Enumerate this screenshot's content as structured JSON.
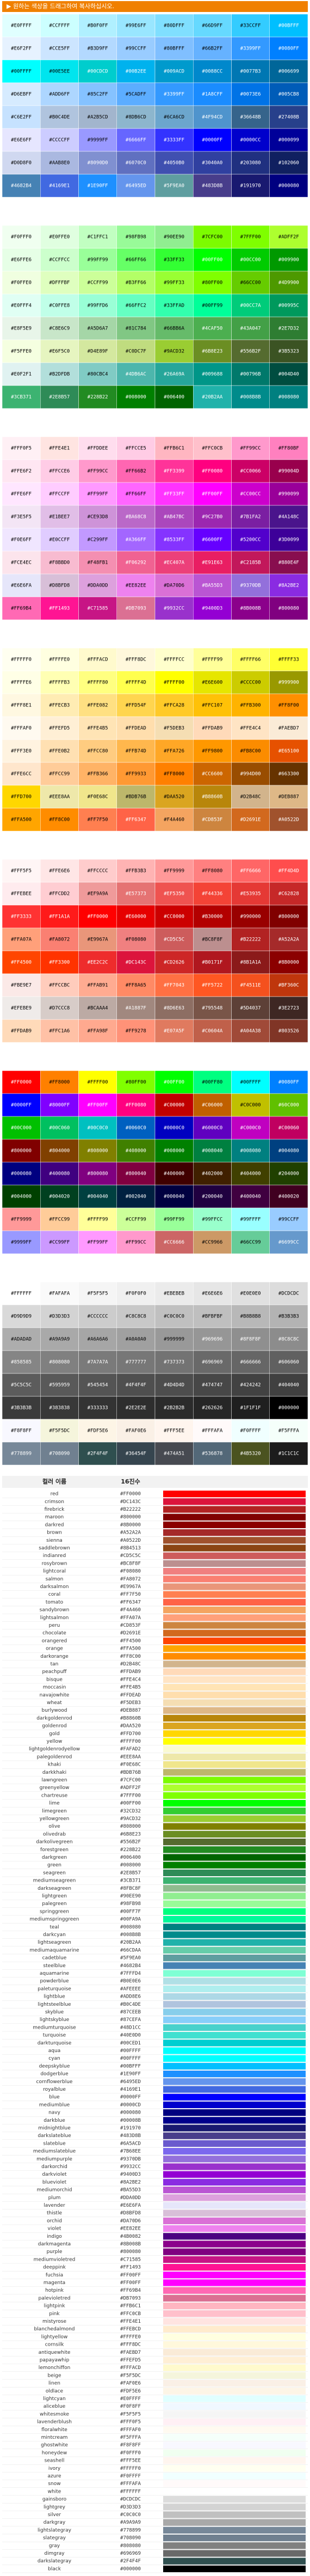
{
  "banner": {
    "text": "▶ 원하는 색상을 드래그하여 복사하십시오."
  },
  "palettes": [
    {
      "rows": [
        [
          "#E0FFFF",
          "#CCFFFF",
          "#B0F0FF",
          "#99E6FF",
          "#80DFFF",
          "#66D9FF",
          "#33CCFF",
          "#00BFFF"
        ],
        [
          "#E6F2FF",
          "#CCE5FF",
          "#B3D9FF",
          "#99CCFF",
          "#80BFFF",
          "#66B2FF",
          "#3399FF",
          "#0080FF"
        ],
        [
          "#00FFFF",
          "#00E5EE",
          "#00CDCD",
          "#00B2EE",
          "#009ACD",
          "#0088CC",
          "#0077B3",
          "#006699"
        ],
        [
          "#D6EBFF",
          "#ADD6FF",
          "#85C2FF",
          "#5CADFF",
          "#3399FF",
          "#1A8CFF",
          "#0073E6",
          "#005CB8"
        ],
        [
          "#C6E2FF",
          "#B0C4DE",
          "#A2B5CD",
          "#8DB6CD",
          "#6CA6CD",
          "#4F94CD",
          "#36648B",
          "#27408B"
        ],
        [
          "#E6E6FF",
          "#CCCCFF",
          "#9999FF",
          "#6666FF",
          "#3333FF",
          "#0000FF",
          "#0000CC",
          "#000099"
        ],
        [
          "#D0D8F0",
          "#AAB8E0",
          "#8090D0",
          "#6070C0",
          "#4050B0",
          "#3040A0",
          "#203080",
          "#102060"
        ],
        [
          "#4682B4",
          "#4169E1",
          "#1E90FF",
          "#6495ED",
          "#5F9EA0",
          "#483D8B",
          "#191970",
          "#000080"
        ]
      ]
    },
    {
      "rows": [
        [
          "#F0FFF0",
          "#E0FFE0",
          "#C1FFC1",
          "#98FB98",
          "#90EE90",
          "#7CFC00",
          "#7FFF00",
          "#ADFF2F"
        ],
        [
          "#E6FFE6",
          "#CCFFCC",
          "#99FF99",
          "#66FF66",
          "#33FF33",
          "#00FF00",
          "#00CC00",
          "#009900"
        ],
        [
          "#F0FFE0",
          "#DFFFBF",
          "#CCFF99",
          "#B3FF66",
          "#99FF33",
          "#80FF00",
          "#66CC00",
          "#4D9900"
        ],
        [
          "#E0FFF4",
          "#C0FFE8",
          "#99FFD6",
          "#66FFC2",
          "#33FFAD",
          "#00FF99",
          "#00CC7A",
          "#00995C"
        ],
        [
          "#E8F5E9",
          "#C8E6C9",
          "#A5D6A7",
          "#81C784",
          "#66BB6A",
          "#4CAF50",
          "#43A047",
          "#2E7D32"
        ],
        [
          "#F5FFE0",
          "#E6F5C0",
          "#D4E89F",
          "#C0DC7F",
          "#9ACD32",
          "#6B8E23",
          "#556B2F",
          "#3B5323"
        ],
        [
          "#E0F2F1",
          "#B2DFDB",
          "#80CBC4",
          "#4DB6AC",
          "#26A69A",
          "#009688",
          "#00796B",
          "#004D40"
        ],
        [
          "#3CB371",
          "#2E8B57",
          "#228B22",
          "#008000",
          "#006400",
          "#20B2AA",
          "#008B8B",
          "#008080"
        ]
      ]
    },
    {
      "rows": [
        [
          "#FFF0F5",
          "#FFE4E1",
          "#FFDDEE",
          "#FFCCE5",
          "#FFB6C1",
          "#FFC0CB",
          "#FF99CC",
          "#FF80BF"
        ],
        [
          "#FFE6F2",
          "#FFCCE6",
          "#FF99CC",
          "#FF66B2",
          "#FF3399",
          "#FF0080",
          "#CC0066",
          "#99004D"
        ],
        [
          "#FFE6FF",
          "#FFCCFF",
          "#FF99FF",
          "#FF66FF",
          "#FF33FF",
          "#FF00FF",
          "#CC00CC",
          "#990099"
        ],
        [
          "#F3E5F5",
          "#E1BEE7",
          "#CE93D8",
          "#BA68C8",
          "#AB47BC",
          "#9C27B0",
          "#7B1FA2",
          "#4A148C"
        ],
        [
          "#F0E6FF",
          "#E0CCFF",
          "#C299FF",
          "#A366FF",
          "#8533FF",
          "#6600FF",
          "#5200CC",
          "#3D0099"
        ],
        [
          "#FCE4EC",
          "#F8BBD0",
          "#F48FB1",
          "#F06292",
          "#EC407A",
          "#E91E63",
          "#C2185B",
          "#880E4F"
        ],
        [
          "#E6E6FA",
          "#D8BFD8",
          "#DDA0DD",
          "#EE82EE",
          "#DA70D6",
          "#BA55D3",
          "#9370DB",
          "#8A2BE2"
        ],
        [
          "#FF69B4",
          "#FF1493",
          "#C71585",
          "#DB7093",
          "#9932CC",
          "#9400D3",
          "#8B008B",
          "#800080"
        ]
      ]
    },
    {
      "rows": [
        [
          "#FFFFF0",
          "#FFFFE0",
          "#FFFACD",
          "#FFF8DC",
          "#FFFFCC",
          "#FFFF99",
          "#FFFF66",
          "#FFFF33"
        ],
        [
          "#FFFFE6",
          "#FFFFB3",
          "#FFFF80",
          "#FFFF4D",
          "#FFFF00",
          "#E6E600",
          "#CCCC00",
          "#999900"
        ],
        [
          "#FFF8E1",
          "#FFECB3",
          "#FFE082",
          "#FFD54F",
          "#FFCA28",
          "#FFC107",
          "#FFB300",
          "#FF8F00"
        ],
        [
          "#FFFAF0",
          "#FFEFD5",
          "#FFE4B5",
          "#FFDEAD",
          "#F5DEB3",
          "#FFDAB9",
          "#FFE4C4",
          "#FAEBD7"
        ],
        [
          "#FFF3E0",
          "#FFE0B2",
          "#FFCC80",
          "#FFB74D",
          "#FFA726",
          "#FF9800",
          "#FB8C00",
          "#E65100"
        ],
        [
          "#FFE6CC",
          "#FFCC99",
          "#FFB366",
          "#FF9933",
          "#FF8000",
          "#CC6600",
          "#994D00",
          "#663300"
        ],
        [
          "#FFD700",
          "#EEE8AA",
          "#F0E68C",
          "#BDB76B",
          "#DAA520",
          "#B8860B",
          "#D2B48C",
          "#DEB887"
        ],
        [
          "#FFA500",
          "#FF8C00",
          "#FF7F50",
          "#FF6347",
          "#F4A460",
          "#CD853F",
          "#D2691E",
          "#A0522D"
        ]
      ]
    },
    {
      "rows": [
        [
          "#FFF5F5",
          "#FFE6E6",
          "#FFCCCC",
          "#FFB3B3",
          "#FF9999",
          "#FF8080",
          "#FF6666",
          "#FF4D4D"
        ],
        [
          "#FFEBEE",
          "#FFCDD2",
          "#EF9A9A",
          "#E57373",
          "#EF5350",
          "#F44336",
          "#E53935",
          "#C62828"
        ],
        [
          "#FF3333",
          "#FF1A1A",
          "#FF0000",
          "#E60000",
          "#CC0000",
          "#B30000",
          "#990000",
          "#800000"
        ],
        [
          "#FFA07A",
          "#FA8072",
          "#E9967A",
          "#F08080",
          "#CD5C5C",
          "#BC8F8F",
          "#B22222",
          "#A52A2A"
        ],
        [
          "#FF4500",
          "#FF3300",
          "#EE2C2C",
          "#DC143C",
          "#CD2626",
          "#B0171F",
          "#8B1A1A",
          "#8B0000"
        ],
        [
          "#FBE9E7",
          "#FFCCBC",
          "#FFAB91",
          "#FF8A65",
          "#FF7043",
          "#FF5722",
          "#F4511E",
          "#BF360C"
        ],
        [
          "#EFEBE9",
          "#D7CCC8",
          "#BCAAA4",
          "#A1887F",
          "#8D6E63",
          "#795548",
          "#5D4037",
          "#3E2723"
        ],
        [
          "#FFDAB9",
          "#FFC1A6",
          "#FFA98F",
          "#FF9278",
          "#E07A5F",
          "#C0604A",
          "#A04A38",
          "#803526"
        ]
      ]
    },
    {
      "rows": [
        [
          "#FF0000",
          "#FF8000",
          "#FFFF00",
          "#80FF00",
          "#00FF00",
          "#00FF80",
          "#00FFFF",
          "#0080FF"
        ],
        [
          "#0000FF",
          "#8000FF",
          "#FF00FF",
          "#FF0080",
          "#C00000",
          "#C06000",
          "#C0C000",
          "#60C000"
        ],
        [
          "#00C000",
          "#00C060",
          "#00C0C0",
          "#0060C0",
          "#0000C0",
          "#6000C0",
          "#C000C0",
          "#C00060"
        ],
        [
          "#800000",
          "#804000",
          "#808000",
          "#408000",
          "#008000",
          "#008040",
          "#008080",
          "#004080"
        ],
        [
          "#000080",
          "#400080",
          "#800080",
          "#800040",
          "#400000",
          "#402000",
          "#404000",
          "#204000"
        ],
        [
          "#004000",
          "#004020",
          "#004040",
          "#002040",
          "#000040",
          "#200040",
          "#400040",
          "#400020"
        ],
        [
          "#FF9999",
          "#FFCC99",
          "#FFFF99",
          "#CCFF99",
          "#99FF99",
          "#99FFCC",
          "#99FFFF",
          "#99CCFF"
        ],
        [
          "#9999FF",
          "#CC99FF",
          "#FF99FF",
          "#FF99CC",
          "#CC6666",
          "#CC9966",
          "#66CC99",
          "#6699CC"
        ]
      ]
    },
    {
      "rows": [
        [
          "#FFFFFF",
          "#FAFAFA",
          "#F5F5F5",
          "#F0F0F0",
          "#EBEBEB",
          "#E6E6E6",
          "#E0E0E0",
          "#DCDCDC"
        ],
        [
          "#D9D9D9",
          "#D3D3D3",
          "#CCCCCC",
          "#C8C8C8",
          "#C0C0C0",
          "#BFBFBF",
          "#B8B8B8",
          "#B3B3B3"
        ],
        [
          "#ADADAD",
          "#A9A9A9",
          "#A6A6A6",
          "#A0A0A0",
          "#999999",
          "#969696",
          "#8F8F8F",
          "#8C8C8C"
        ],
        [
          "#858585",
          "#808080",
          "#7A7A7A",
          "#777777",
          "#737373",
          "#696969",
          "#666666",
          "#606060"
        ],
        [
          "#5C5C5C",
          "#595959",
          "#545454",
          "#4F4F4F",
          "#4D4D4D",
          "#474747",
          "#424242",
          "#404040"
        ],
        [
          "#3B3B3B",
          "#383838",
          "#333333",
          "#2E2E2E",
          "#2B2B2B",
          "#262626",
          "#1F1F1F",
          "#000000"
        ],
        [
          "#F8F8FF",
          "#F5F5DC",
          "#FDF5E6",
          "#FAF0E6",
          "#FFF5EE",
          "#FFFAFA",
          "#F0FFFF",
          "#F5FFFA"
        ],
        [
          "#778899",
          "#708090",
          "#2F4F4F",
          "#36454F",
          "#474A51",
          "#536878",
          "#4B5320",
          "#1C1C1C"
        ]
      ]
    }
  ],
  "named_colors": {
    "headers": [
      "컬러 이름",
      "16진수"
    ],
    "rows": [
      [
        "red",
        "#FF0000"
      ],
      [
        "crimson",
        "#DC143C"
      ],
      [
        "firebrick",
        "#B22222"
      ],
      [
        "maroon",
        "#800000"
      ],
      [
        "darkred",
        "#8B0000"
      ],
      [
        "brown",
        "#A52A2A"
      ],
      [
        "sienna",
        "#A0522D"
      ],
      [
        "saddlebrown",
        "#8B4513"
      ],
      [
        "indianred",
        "#CD5C5C"
      ],
      [
        "rosybrown",
        "#BC8F8F"
      ],
      [
        "lightcoral",
        "#F08080"
      ],
      [
        "salmon",
        "#FA8072"
      ],
      [
        "darksalmon",
        "#E9967A"
      ],
      [
        "coral",
        "#FF7F50"
      ],
      [
        "tomato",
        "#FF6347"
      ],
      [
        "sandybrown",
        "#F4A460"
      ],
      [
        "lightsalmon",
        "#FFA07A"
      ],
      [
        "peru",
        "#CD853F"
      ],
      [
        "chocolate",
        "#D2691E"
      ],
      [
        "orangered",
        "#FF4500"
      ],
      [
        "orange",
        "#FFA500"
      ],
      [
        "darkorange",
        "#FF8C00"
      ],
      [
        "tan",
        "#D2B48C"
      ],
      [
        "peachpuff",
        "#FFDAB9"
      ],
      [
        "bisque",
        "#FFE4C4"
      ],
      [
        "moccasin",
        "#FFE4B5"
      ],
      [
        "navajowhite",
        "#FFDEAD"
      ],
      [
        "wheat",
        "#F5DEB3"
      ],
      [
        "burlywood",
        "#DEB887"
      ],
      [
        "darkgoldenrod",
        "#B8860B"
      ],
      [
        "goldenrod",
        "#DAA520"
      ],
      [
        "gold",
        "#FFD700"
      ],
      [
        "yellow",
        "#FFFF00"
      ],
      [
        "lightgoldenrodyellow",
        "#FAFAD2"
      ],
      [
        "palegoldenrod",
        "#EEE8AA"
      ],
      [
        "khaki",
        "#F0E68C"
      ],
      [
        "darkkhaki",
        "#BDB76B"
      ],
      [
        "lawngreen",
        "#7CFC00"
      ],
      [
        "greenyellow",
        "#ADFF2F"
      ],
      [
        "chartreuse",
        "#7FFF00"
      ],
      [
        "lime",
        "#00FF00"
      ],
      [
        "limegreen",
        "#32CD32"
      ],
      [
        "yellowgreen",
        "#9ACD32"
      ],
      [
        "olive",
        "#808000"
      ],
      [
        "olivedrab",
        "#6B8E23"
      ],
      [
        "darkolivegreen",
        "#556B2F"
      ],
      [
        "forestgreen",
        "#228B22"
      ],
      [
        "darkgreen",
        "#006400"
      ],
      [
        "green",
        "#008000"
      ],
      [
        "seagreen",
        "#2E8B57"
      ],
      [
        "mediumseagreen",
        "#3CB371"
      ],
      [
        "darkseagreen",
        "#8FBC8F"
      ],
      [
        "lightgreen",
        "#90EE90"
      ],
      [
        "palegreen",
        "#98FB98"
      ],
      [
        "springgreen",
        "#00FF7F"
      ],
      [
        "mediumspringgreen",
        "#00FA9A"
      ],
      [
        "teal",
        "#008080"
      ],
      [
        "darkcyan",
        "#008B8B"
      ],
      [
        "lightseagreen",
        "#20B2AA"
      ],
      [
        "mediumaquamarine",
        "#66CDAA"
      ],
      [
        "cadetblue",
        "#5F9EA0"
      ],
      [
        "steelblue",
        "#4682B4"
      ],
      [
        "aquamarine",
        "#7FFFD4"
      ],
      [
        "powderblue",
        "#B0E0E6"
      ],
      [
        "paleturquoise",
        "#AFEEEE"
      ],
      [
        "lightblue",
        "#ADD8E6"
      ],
      [
        "lightsteelblue",
        "#B0C4DE"
      ],
      [
        "skyblue",
        "#87CEEB"
      ],
      [
        "lightskyblue",
        "#87CEFA"
      ],
      [
        "mediumturquoise",
        "#48D1CC"
      ],
      [
        "turquoise",
        "#40E0D0"
      ],
      [
        "darkturquoise",
        "#00CED1"
      ],
      [
        "aqua",
        "#00FFFF"
      ],
      [
        "cyan",
        "#00FFFF"
      ],
      [
        "deepskyblue",
        "#00BFFF"
      ],
      [
        "dodgerblue",
        "#1E90FF"
      ],
      [
        "cornflowerblue",
        "#6495ED"
      ],
      [
        "royalblue",
        "#4169E1"
      ],
      [
        "blue",
        "#0000FF"
      ],
      [
        "mediumblue",
        "#0000CD"
      ],
      [
        "navy",
        "#000080"
      ],
      [
        "darkblue",
        "#00008B"
      ],
      [
        "midnightblue",
        "#191970"
      ],
      [
        "darkslateblue",
        "#483D8B"
      ],
      [
        "slateblue",
        "#6A5ACD"
      ],
      [
        "mediumslateblue",
        "#7B68EE"
      ],
      [
        "mediumpurple",
        "#9370DB"
      ],
      [
        "darkorchid",
        "#9932CC"
      ],
      [
        "darkviolet",
        "#9400D3"
      ],
      [
        "blueviolet",
        "#8A2BE2"
      ],
      [
        "mediumorchid",
        "#BA55D3"
      ],
      [
        "plum",
        "#DDA0DD"
      ],
      [
        "lavender",
        "#E6E6FA"
      ],
      [
        "thistle",
        "#D8BFD8"
      ],
      [
        "orchid",
        "#DA70D6"
      ],
      [
        "violet",
        "#EE82EE"
      ],
      [
        "indigo",
        "#4B0082"
      ],
      [
        "darkmagenta",
        "#8B008B"
      ],
      [
        "purple",
        "#800080"
      ],
      [
        "mediumvioletred",
        "#C71585"
      ],
      [
        "deeppink",
        "#FF1493"
      ],
      [
        "fuchsia",
        "#FF00FF"
      ],
      [
        "magenta",
        "#FF00FF"
      ],
      [
        "hotpink",
        "#FF69B4"
      ],
      [
        "palevioletred",
        "#DB7093"
      ],
      [
        "lightpink",
        "#FFB6C1"
      ],
      [
        "pink",
        "#FFC0CB"
      ],
      [
        "mistyrose",
        "#FFE4E1"
      ],
      [
        "blanchedalmond",
        "#FFEBCD"
      ],
      [
        "lightyellow",
        "#FFFFE0"
      ],
      [
        "cornsilk",
        "#FFF8DC"
      ],
      [
        "antiquewhite",
        "#FAEBD7"
      ],
      [
        "papayawhip",
        "#FFEFD5"
      ],
      [
        "lemonchiffon",
        "#FFFACD"
      ],
      [
        "beige",
        "#F5F5DC"
      ],
      [
        "linen",
        "#FAF0E6"
      ],
      [
        "oldlace",
        "#FDF5E6"
      ],
      [
        "lightcyan",
        "#E0FFFF"
      ],
      [
        "aliceblue",
        "#F0F8FF"
      ],
      [
        "whitesmoke",
        "#F5F5F5"
      ],
      [
        "lavenderblush",
        "#FFF0F5"
      ],
      [
        "floralwhite",
        "#FFFAF0"
      ],
      [
        "mintcream",
        "#F5FFFA"
      ],
      [
        "ghostwhite",
        "#F8F8FF"
      ],
      [
        "honeydew",
        "#F0FFF0"
      ],
      [
        "seashell",
        "#FFF5EE"
      ],
      [
        "ivory",
        "#FFFFF0"
      ],
      [
        "azure",
        "#F0FFFF"
      ],
      [
        "snow",
        "#FFFAFA"
      ],
      [
        "white",
        "#FFFFFF"
      ],
      [
        "gainsboro",
        "#DCDCDC"
      ],
      [
        "lightgrey",
        "#D3D3D3"
      ],
      [
        "silver",
        "#C0C0C0"
      ],
      [
        "darkgray",
        "#A9A9A9"
      ],
      [
        "lightslategray",
        "#778899"
      ],
      [
        "slategray",
        "#708090"
      ],
      [
        "gray",
        "#808080"
      ],
      [
        "dimgray",
        "#696969"
      ],
      [
        "darkslategray",
        "#2F4F4F"
      ],
      [
        "black",
        "#000000"
      ]
    ]
  }
}
